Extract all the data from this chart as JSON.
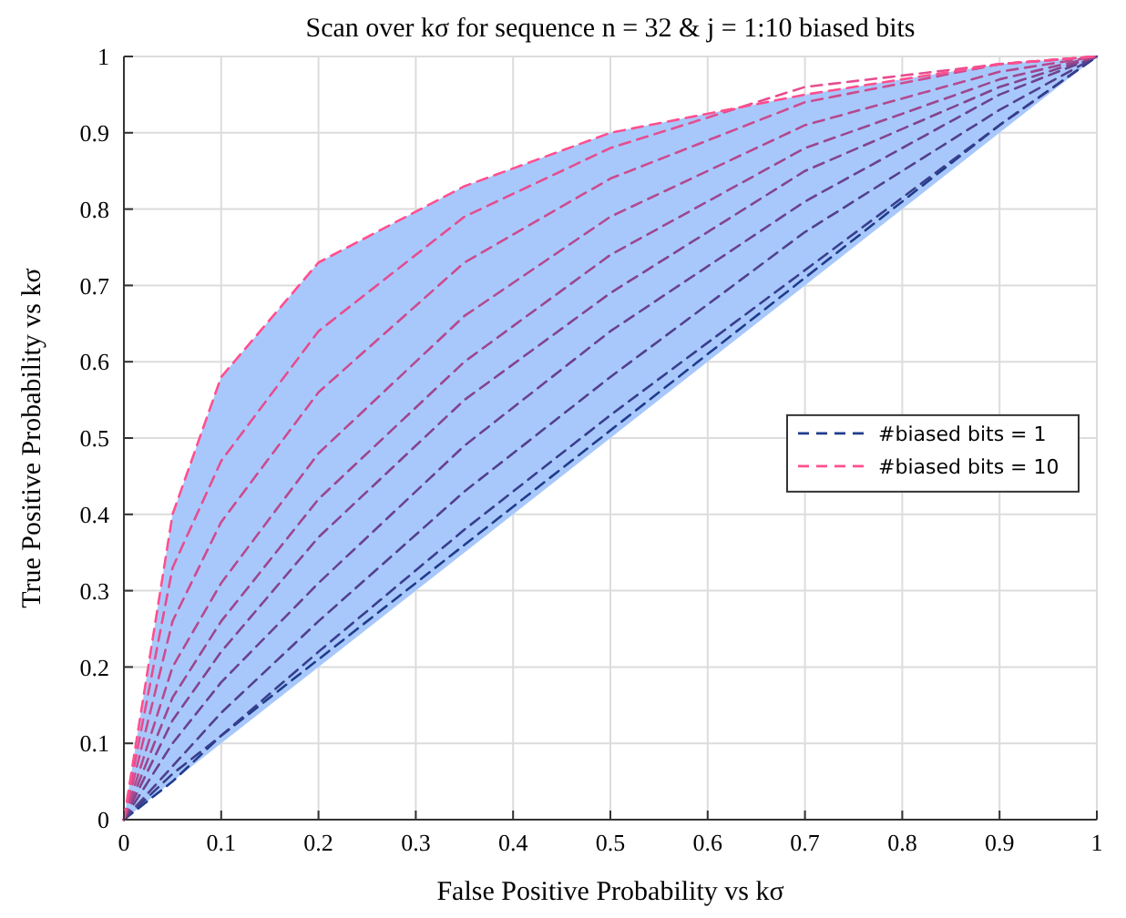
{
  "chart_data": {
    "type": "line",
    "title": "Scan over kσ for sequence n = 32 & j = 1:10 biased bits",
    "xlabel": "False Positive Probability vs kσ",
    "ylabel": "True Positive Probability vs kσ",
    "x": [
      0,
      0.05,
      0.1,
      0.2,
      0.35,
      0.5,
      0.7,
      0.9,
      1
    ],
    "xlim": [
      0,
      1
    ],
    "ylim": [
      0,
      1
    ],
    "xticks": [
      0,
      0.1,
      0.2,
      0.3,
      0.4,
      0.5,
      0.6,
      0.7,
      0.8,
      0.9,
      1
    ],
    "yticks": [
      0,
      0.1,
      0.2,
      0.3,
      0.4,
      0.5,
      0.6,
      0.7,
      0.8,
      0.9,
      1
    ],
    "grid": true,
    "legend": "right",
    "line_style": "dashed",
    "series": [
      {
        "name": "#biased bits = 1",
        "color": "#203c8c",
        "values": [
          0,
          0.05,
          0.11,
          0.21,
          0.36,
          0.51,
          0.71,
          0.91,
          1
        ]
      },
      {
        "color": "#393e8c",
        "values": [
          0,
          0.06,
          0.11,
          0.22,
          0.38,
          0.53,
          0.72,
          0.91,
          1
        ]
      },
      {
        "color": "#52408d",
        "values": [
          0,
          0.07,
          0.14,
          0.26,
          0.43,
          0.58,
          0.77,
          0.93,
          1
        ]
      },
      {
        "color": "#6a428d",
        "values": [
          0,
          0.1,
          0.18,
          0.31,
          0.49,
          0.64,
          0.81,
          0.95,
          1
        ]
      },
      {
        "color": "#83448d",
        "values": [
          0,
          0.13,
          0.22,
          0.37,
          0.55,
          0.69,
          0.85,
          0.96,
          1
        ]
      },
      {
        "color": "#9c478e",
        "values": [
          0,
          0.16,
          0.26,
          0.42,
          0.6,
          0.74,
          0.88,
          0.97,
          1
        ]
      },
      {
        "color": "#b5498e",
        "values": [
          0,
          0.2,
          0.31,
          0.48,
          0.66,
          0.79,
          0.91,
          0.98,
          1
        ]
      },
      {
        "color": "#ce4b8e",
        "values": [
          0,
          0.26,
          0.39,
          0.56,
          0.73,
          0.84,
          0.94,
          0.99,
          1
        ]
      },
      {
        "color": "#e64d8f",
        "values": [
          0,
          0.33,
          0.47,
          0.64,
          0.79,
          0.88,
          0.96,
          0.99,
          1
        ]
      },
      {
        "name": "#biased bits = 10",
        "color": "#ff4f8f",
        "values": [
          0,
          0.4,
          0.58,
          0.73,
          0.83,
          0.9,
          0.95,
          0.99,
          1
        ],
        "lower": [
          0,
          0.05,
          0.1,
          0.2,
          0.35,
          0.5,
          0.7,
          0.9,
          1
        ],
        "upper": [
          0,
          0.4,
          0.58,
          0.73,
          0.83,
          0.9,
          0.95,
          0.99,
          1
        ]
      }
    ]
  }
}
